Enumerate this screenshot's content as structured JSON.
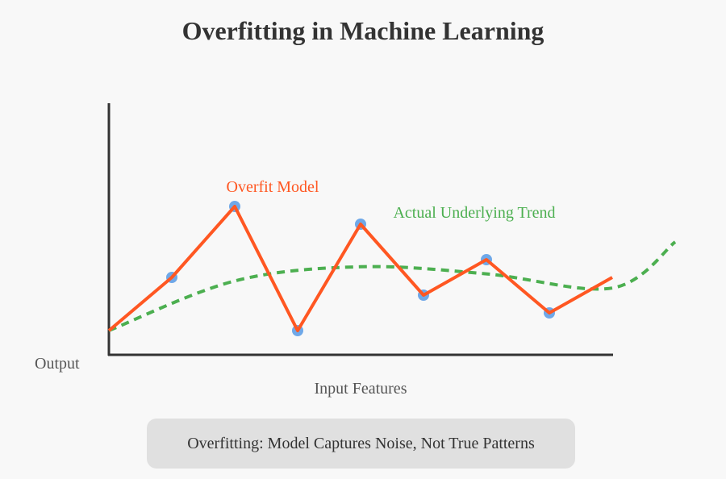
{
  "title": "Overfitting in Machine Learning",
  "axes": {
    "y_label": "Output",
    "x_label": "Input Features"
  },
  "labels": {
    "overfit_model": "Overfit Model",
    "actual_trend": "Actual Underlying Trend"
  },
  "caption": "Overfitting: Model Captures Noise, Not True Patterns",
  "colors": {
    "overfit_line": "#ff5722",
    "trend_line": "#4caf50",
    "data_point": "#6fa8e8",
    "axis": "#333333",
    "text": "#555555"
  },
  "chart_data": {
    "type": "line",
    "series": [
      {
        "name": "Overfit Model",
        "style": "solid",
        "points": [
          [
            0,
            2.5
          ],
          [
            1,
            4.0
          ],
          [
            2,
            6.0
          ],
          [
            3,
            2.5
          ],
          [
            4,
            5.5
          ],
          [
            5,
            3.5
          ],
          [
            6,
            4.5
          ],
          [
            7,
            3.0
          ],
          [
            8,
            4.0
          ]
        ]
      },
      {
        "name": "Actual Underlying Trend",
        "style": "dashed",
        "points": [
          [
            0,
            2.5
          ],
          [
            2,
            3.9
          ],
          [
            4,
            4.3
          ],
          [
            6,
            4.1
          ],
          [
            8,
            3.7
          ],
          [
            9,
            5.0
          ]
        ]
      }
    ],
    "data_points": [
      [
        1,
        4.0
      ],
      [
        2,
        6.0
      ],
      [
        3,
        2.5
      ],
      [
        4,
        5.5
      ],
      [
        5,
        3.5
      ],
      [
        6,
        4.5
      ],
      [
        7,
        3.0
      ]
    ]
  }
}
